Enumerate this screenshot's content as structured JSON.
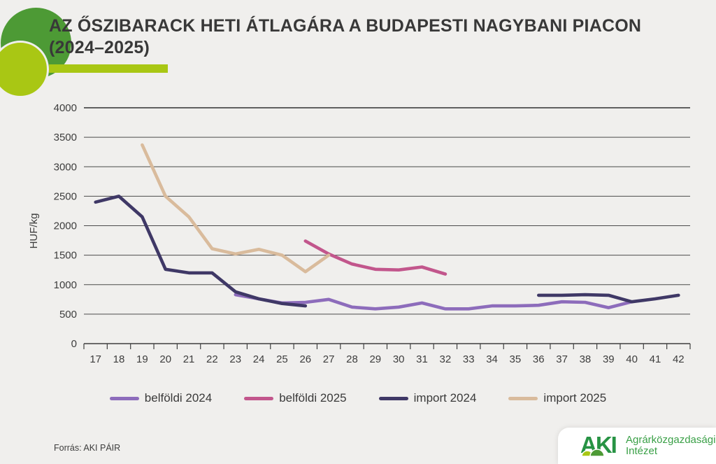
{
  "header": {
    "title_line1": "AZ ŐSZIBARACK HETI ÁTLAGÁRA A BUDAPESTI NAGYBANI PIACON",
    "title_line2": "(2024–2025)",
    "accent_color": "#a9c714",
    "logo_green": "#4d9a35",
    "logo_lime": "#a9c714"
  },
  "chart_data": {
    "type": "line",
    "title": "Az őszibarack heti átlagára a budapesti nagybani piacon (2024–2025)",
    "xlabel": "",
    "ylabel": "HUF/kg",
    "ylim": [
      0,
      4000
    ],
    "ytick_step": 500,
    "yticks": [
      0,
      500,
      1000,
      1500,
      2000,
      2500,
      3000,
      3500,
      4000
    ],
    "grid": true,
    "legend_position": "bottom",
    "x": [
      17,
      18,
      19,
      20,
      21,
      22,
      23,
      24,
      25,
      26,
      27,
      28,
      29,
      30,
      31,
      32,
      33,
      34,
      35,
      36,
      37,
      38,
      39,
      40,
      41,
      42
    ],
    "series": [
      {
        "name": "belföldi 2024",
        "color": "#8d6cbb",
        "values": [
          null,
          null,
          null,
          null,
          null,
          null,
          830,
          760,
          690,
          700,
          750,
          620,
          590,
          620,
          690,
          590,
          590,
          640,
          640,
          650,
          710,
          700,
          610,
          710,
          null,
          null
        ]
      },
      {
        "name": "belföldi 2025",
        "color": "#c2568c",
        "values": [
          null,
          null,
          null,
          null,
          null,
          null,
          null,
          null,
          null,
          1740,
          1520,
          1350,
          1260,
          1250,
          1300,
          1180,
          null,
          null,
          null,
          null,
          null,
          null,
          null,
          null,
          null,
          null
        ]
      },
      {
        "name": "import 2024",
        "color": "#3f3866",
        "values": [
          2400,
          2500,
          2150,
          1260,
          1200,
          1200,
          880,
          760,
          680,
          640,
          null,
          null,
          null,
          null,
          null,
          null,
          null,
          null,
          null,
          820,
          820,
          830,
          820,
          710,
          760,
          820
        ]
      },
      {
        "name": "import 2025",
        "color": "#d9bb9c",
        "values": [
          null,
          null,
          3370,
          2500,
          2150,
          1610,
          1520,
          1600,
          1500,
          1220,
          1500,
          null,
          null,
          null,
          null,
          null,
          null,
          null,
          null,
          null,
          null,
          null,
          null,
          null,
          null,
          null
        ]
      }
    ]
  },
  "footer": {
    "source": "Forrás: AKI PÁIR",
    "brand": {
      "abbr": "AKI",
      "name_line1": "Agrárközgazdasági",
      "name_line2": "Intézet",
      "green": "#279344",
      "lime": "#a9c714"
    }
  }
}
